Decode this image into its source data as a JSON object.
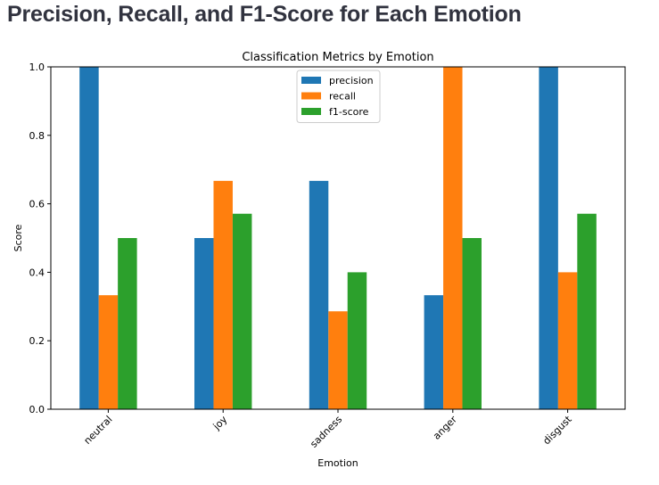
{
  "page": {
    "heading": "Precision, Recall, and F1-Score for Each Emotion"
  },
  "chart_data": {
    "type": "bar",
    "title": "Classification Metrics by Emotion",
    "xlabel": "Emotion",
    "ylabel": "Score",
    "ylim": [
      0,
      1.0
    ],
    "yticks": [
      "0.0",
      "0.2",
      "0.4",
      "0.6",
      "0.8",
      "1.0"
    ],
    "categories": [
      "neutral",
      "joy",
      "sadness",
      "anger",
      "disgust"
    ],
    "series": [
      {
        "name": "precision",
        "color": "#1f77b4",
        "values": [
          1.0,
          0.5,
          0.667,
          0.333,
          1.0
        ]
      },
      {
        "name": "recall",
        "color": "#ff7f0e",
        "values": [
          0.333,
          0.667,
          0.286,
          1.0,
          0.4
        ]
      },
      {
        "name": "f1-score",
        "color": "#2ca02c",
        "values": [
          0.5,
          0.571,
          0.4,
          0.5,
          0.571
        ]
      }
    ],
    "legend_position": "top-center",
    "grid": false
  }
}
